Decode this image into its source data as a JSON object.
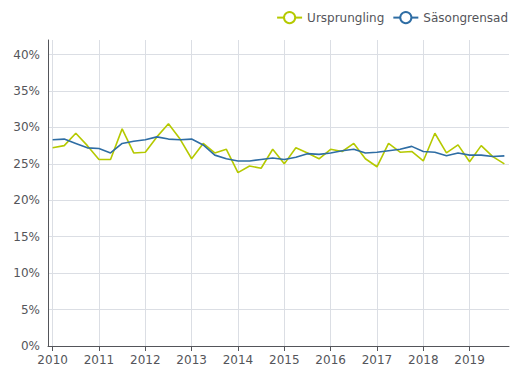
{
  "chart_data": {
    "type": "line",
    "x": [
      2010,
      2010.25,
      2010.5,
      2010.75,
      2011,
      2011.25,
      2011.5,
      2011.75,
      2012,
      2012.25,
      2012.5,
      2012.75,
      2013,
      2013.25,
      2013.5,
      2013.75,
      2014,
      2014.25,
      2014.5,
      2014.75,
      2015,
      2015.25,
      2015.5,
      2015.75,
      2016,
      2016.25,
      2016.5,
      2016.75,
      2017,
      2017.25,
      2017.5,
      2017.75,
      2018,
      2018.25,
      2018.5,
      2018.75,
      2019,
      2019.25,
      2019.5,
      2019.75
    ],
    "series": [
      {
        "name": "Ursprungling",
        "color": "#b5c900",
        "values": [
          0.272,
          0.275,
          0.292,
          0.275,
          0.256,
          0.256,
          0.298,
          0.265,
          0.266,
          0.287,
          0.305,
          0.284,
          0.257,
          0.278,
          0.265,
          0.27,
          0.238,
          0.247,
          0.244,
          0.27,
          0.25,
          0.272,
          0.265,
          0.257,
          0.27,
          0.267,
          0.278,
          0.257,
          0.246,
          0.278,
          0.266,
          0.267,
          0.254,
          0.292,
          0.265,
          0.276,
          0.253,
          0.275,
          0.26,
          0.25
        ]
      },
      {
        "name": "Säsongrensad",
        "color": "#2e6da4",
        "values": [
          0.283,
          0.284,
          0.278,
          0.272,
          0.271,
          0.265,
          0.278,
          0.281,
          0.283,
          0.287,
          0.284,
          0.283,
          0.284,
          0.276,
          0.262,
          0.257,
          0.254,
          0.254,
          0.256,
          0.258,
          0.256,
          0.259,
          0.264,
          0.263,
          0.265,
          0.268,
          0.27,
          0.265,
          0.266,
          0.268,
          0.27,
          0.274,
          0.267,
          0.266,
          0.261,
          0.265,
          0.262,
          0.262,
          0.26,
          0.261
        ]
      }
    ],
    "xlim": [
      2009.9,
      2019.85
    ],
    "xticks": [
      2010,
      2011,
      2012,
      2013,
      2014,
      2015,
      2016,
      2017,
      2018,
      2019
    ],
    "ylim": [
      0.0,
      0.42
    ],
    "yticks": [
      {
        "value": 0.0,
        "label": "0%"
      },
      {
        "value": 0.05,
        "label": "5%"
      },
      {
        "value": 0.1,
        "label": "10%"
      },
      {
        "value": 0.15,
        "label": "15%"
      },
      {
        "value": 0.2,
        "label": "20%"
      },
      {
        "value": 0.25,
        "label": "25%"
      },
      {
        "value": 0.3,
        "label": "30%"
      },
      {
        "value": 0.35,
        "label": "35%"
      },
      {
        "value": 0.4,
        "label": "40%"
      }
    ],
    "grid": true,
    "legend": "upper right"
  }
}
